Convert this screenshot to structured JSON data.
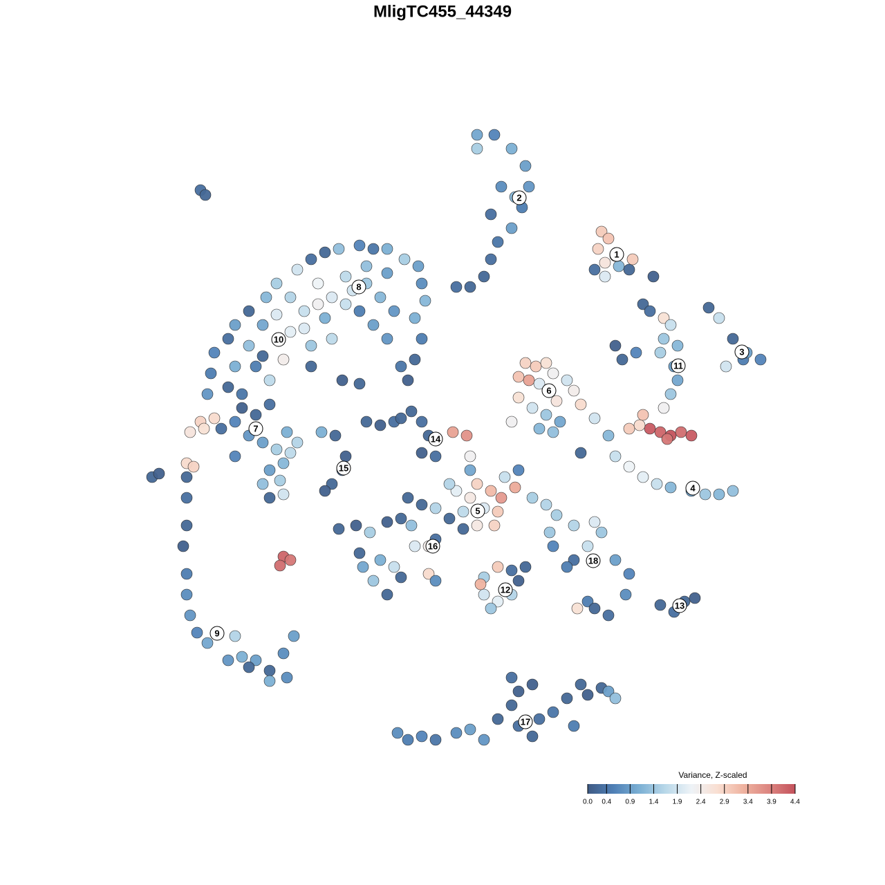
{
  "chart_data": {
    "type": "scatter",
    "title": "MligTC455_44349",
    "xlim": [
      -46,
      46
    ],
    "ylim": [
      -46,
      46
    ],
    "x": [
      23,
      24,
      22.5,
      25,
      23.5,
      25.5,
      22,
      27,
      23.5,
      27.5,
      5,
      7.5,
      10,
      12,
      12.5,
      11.5,
      10,
      8,
      7,
      6,
      4,
      2,
      8.5,
      5,
      10.5,
      7,
      38.5,
      40,
      42,
      43.5,
      46,
      41,
      44,
      29,
      30,
      32,
      33,
      32,
      34,
      31.5,
      33.5,
      25,
      26,
      28,
      34,
      33,
      32,
      22,
      24,
      25,
      27,
      29,
      31,
      33,
      36,
      38,
      40,
      42,
      20,
      30,
      31.5,
      33,
      34.5,
      36,
      32.5,
      27,
      28.5,
      29,
      12,
      13.5,
      15,
      11,
      12.5,
      14,
      16,
      18,
      16.5,
      19,
      20,
      11,
      13,
      15,
      17,
      10,
      14,
      16,
      5,
      7,
      8.5,
      4,
      6,
      8,
      3,
      2,
      9,
      10.5,
      5,
      7.5,
      3,
      1,
      4,
      11,
      13,
      15,
      1.5,
      3.5,
      4,
      -11,
      -9,
      -7,
      -4.5,
      -3,
      -2,
      -3,
      -1,
      -6,
      -10.5,
      -9,
      -7,
      -4,
      -2,
      -4.5,
      -6,
      -8,
      -3,
      -1,
      -12,
      -10,
      -11.5,
      -5,
      -1,
      1,
      -6,
      -8,
      -2,
      -1,
      6,
      8,
      10,
      6,
      8,
      10,
      7,
      12,
      11,
      5.5,
      16.5,
      19,
      22,
      23,
      21,
      19,
      18,
      25,
      27,
      26.5,
      21,
      19.5,
      24,
      22,
      15.5,
      16,
      31.5,
      33.5,
      35,
      36.5,
      -6.5,
      -5,
      -3,
      -1,
      2,
      4,
      6,
      8,
      10,
      11,
      10,
      13,
      14,
      16,
      18,
      20,
      21,
      23,
      24,
      25,
      13,
      11,
      19,
      -37,
      -37,
      -37,
      -37.5,
      -37,
      -37,
      -36.5,
      -35.5,
      -34,
      -32.5,
      -30,
      -29,
      -31,
      -27,
      -25,
      -23,
      -21.5,
      -22.5,
      -25,
      -28,
      -37,
      -36,
      -36.5,
      -35,
      -34.5,
      -33,
      -23,
      -22,
      -23.5,
      -29,
      -27,
      -25,
      -30,
      -28,
      -26,
      -24,
      -22,
      -21,
      -23,
      -25,
      -26,
      -23.5,
      -25,
      -23,
      -30,
      -32,
      -22.5,
      -17.5,
      -15.5,
      -14,
      -14.5,
      -16,
      -17,
      -35,
      -34.3,
      -42,
      -41,
      -12.5,
      -15,
      30.5,
      -33,
      -33.5,
      -34,
      -31,
      -30,
      -28,
      -25.5,
      -24,
      -21,
      -19,
      -17,
      -15,
      -12,
      -10,
      -8,
      -5.5,
      -3.5,
      -3,
      -2.5,
      -4,
      -3,
      -4,
      -5,
      -6,
      -8,
      -10,
      -12,
      -14,
      -16,
      -18,
      -20,
      -22,
      -24,
      -26,
      -22,
      -19,
      -16,
      -13,
      -11,
      -9,
      -7,
      -14,
      -18,
      -28,
      -30,
      -27,
      -25,
      -29,
      -23,
      -20,
      -17,
      -8,
      -11,
      -19,
      -14.5,
      -12,
      -26,
      -31
    ],
    "y": [
      30.5,
      29.5,
      28,
      27,
      26,
      25.5,
      25,
      25,
      24,
      26.5,
      44.5,
      44.5,
      42.5,
      40,
      37,
      34,
      31,
      29,
      26.5,
      24,
      22.5,
      22.5,
      37,
      42.5,
      35.5,
      33,
      19.5,
      18,
      15,
      12,
      12,
      11,
      13,
      20,
      19,
      18,
      17,
      15,
      14,
      13,
      11,
      14,
      12,
      13,
      9,
      7,
      5,
      3.5,
      1,
      -2,
      -3.5,
      -5,
      -6,
      -6.5,
      -7,
      -7.5,
      -7.5,
      -7,
      -1.5,
      2,
      1.5,
      1,
      1.5,
      1,
      0.5,
      2,
      2.5,
      4,
      11.5,
      11,
      11.5,
      9.5,
      9,
      8.5,
      10,
      9,
      6,
      7.5,
      5.5,
      6.5,
      5,
      4,
      3,
      3,
      2,
      1.5,
      -6,
      -7,
      -8,
      -8,
      -9.5,
      -10,
      -10,
      -7,
      -5,
      -6.5,
      -12,
      -12,
      -12.5,
      -6,
      -4,
      -4,
      -8,
      -9,
      1.5,
      1,
      -2,
      3,
      2.5,
      3,
      4.5,
      3,
      1,
      -1.5,
      -2,
      3.5,
      -13,
      -17,
      -18,
      -15,
      -15,
      -12,
      -11,
      -11.5,
      -9,
      -9.5,
      -16,
      -20,
      -18,
      -8,
      -14,
      -11,
      -19.5,
      -22,
      -19,
      -20,
      -19.5,
      -18,
      -18.5,
      -22,
      -23,
      -22,
      -24,
      -18,
      -20,
      -20.5,
      -10.5,
      -12,
      -11.5,
      -13,
      -15,
      -17,
      -18,
      -17,
      -19,
      -22,
      -23,
      -24,
      -25,
      -24,
      -13,
      -15,
      -23.5,
      -24.5,
      -23,
      -22.5,
      -42,
      -43,
      -42.5,
      -43,
      -42,
      -41.5,
      -43,
      -40,
      -38,
      -36,
      -34,
      -35,
      -40,
      -39,
      -37,
      -35,
      -36.5,
      -35.5,
      -36,
      -37,
      -42.5,
      -41,
      -41,
      -5,
      -8,
      -12,
      -15,
      -19,
      -22,
      -25,
      -27.5,
      -29,
      -27.5,
      -28,
      -31,
      -31.5,
      -31.5,
      -33,
      -30.5,
      -28,
      -34,
      -34.5,
      -32.5,
      -3,
      -3.5,
      1.5,
      3,
      2,
      3.5,
      -16.5,
      -17,
      -17.8,
      5,
      4,
      5.5,
      3,
      1,
      0,
      -1,
      -1.5,
      0,
      -3,
      -4,
      -6,
      -5.5,
      -8,
      -7.5,
      -2,
      2,
      1.5,
      1.5,
      1,
      -2,
      -4,
      -6,
      -7,
      36.5,
      35.8,
      -5,
      -4.5,
      -12,
      -12.5,
      24,
      13,
      10,
      7,
      15,
      17,
      19,
      21,
      23,
      25,
      26.5,
      27.5,
      28,
      28.5,
      28,
      28,
      26.5,
      25.5,
      23,
      20.5,
      18,
      15,
      12,
      9,
      11,
      15,
      17,
      19,
      20,
      21,
      20,
      19,
      21,
      18.5,
      17,
      16,
      14,
      15,
      22,
      23,
      21,
      19,
      24,
      23,
      14,
      11,
      11,
      9,
      7,
      12,
      16.5,
      18,
      24.5,
      25.5,
      11,
      9,
      8.5,
      12.5,
      8
    ],
    "values": [
      3.0,
      3.1,
      2.9,
      3.2,
      2.6,
      1.2,
      0.3,
      0.2,
      2.0,
      3.0,
      1.0,
      0.6,
      1.1,
      0.9,
      0.8,
      0.5,
      0.9,
      0.4,
      0.3,
      0.2,
      0.2,
      0.3,
      0.7,
      1.5,
      1.2,
      0.3,
      0.2,
      1.8,
      0.2,
      0.5,
      0.6,
      1.9,
      0.9,
      0.2,
      0.3,
      2.7,
      1.8,
      1.4,
      1.2,
      1.5,
      0.9,
      0.1,
      0.2,
      0.6,
      1.0,
      1.4,
      2.3,
      1.9,
      1.2,
      1.8,
      2.2,
      2.1,
      1.8,
      1.2,
      0.9,
      1.4,
      1.2,
      1.3,
      0.2,
      4.3,
      4.2,
      4.4,
      4.1,
      4.3,
      4.0,
      3.0,
      2.8,
      3.1,
      2.9,
      3.0,
      2.7,
      3.1,
      3.5,
      2.0,
      2.3,
      1.9,
      2.6,
      2.4,
      2.8,
      2.7,
      1.9,
      1.4,
      1.0,
      2.3,
      1.2,
      1.3,
      2.9,
      3.2,
      3.6,
      2.5,
      2.0,
      3.0,
      1.7,
      2.1,
      1.8,
      3.4,
      2.5,
      2.9,
      0.2,
      1.6,
      1.0,
      0.6,
      1.5,
      1.6,
      3.5,
      3.7,
      2.3,
      0.2,
      0.1,
      0.3,
      0.2,
      0.3,
      0.2,
      0.1,
      0.3,
      0.2,
      1.5,
      1.1,
      1.8,
      2.0,
      2.4,
      1.3,
      0.2,
      0.1,
      0.2,
      1.6,
      0.2,
      1.4,
      1.0,
      0.2,
      0.3,
      0.2,
      0.2,
      0.2,
      2.8,
      0.7,
      1.5,
      3.0,
      0.3,
      1.9,
      2.1,
      1.6,
      1.4,
      0.2,
      0.1,
      3.3,
      1.5,
      1.6,
      2.0,
      1.4,
      1.8,
      0.3,
      0.5,
      0.9,
      0.6,
      0.7,
      0.5,
      2.7,
      0.3,
      0.2,
      1.4,
      0.6,
      0.2,
      0.3,
      0.2,
      0.1,
      0.7,
      0.5,
      0.6,
      0.4,
      0.7,
      0.9,
      0.8,
      0.2,
      0.2,
      0.1,
      0.3,
      0.1,
      0.3,
      0.4,
      0.2,
      0.2,
      0.1,
      0.2,
      0.9,
      1.3,
      0.2,
      0.3,
      0.5,
      0.2,
      0.3,
      0.2,
      0.1,
      0.5,
      0.7,
      0.8,
      0.6,
      1.0,
      1.3,
      1.6,
      1.1,
      0.8,
      0.9,
      0.2,
      0.7,
      0.9,
      0.7,
      1.1,
      0.2,
      2.8,
      2.9,
      2.6,
      2.9,
      2.7,
      2.8,
      4.2,
      4.0,
      4.1,
      0.1,
      0.2,
      0.3,
      0.6,
      0.8,
      0.9,
      1.5,
      1.7,
      1.6,
      1.2,
      0.9,
      1.3,
      1.5,
      0.2,
      1.9,
      0.6,
      0.3,
      1.1,
      1.1,
      0.2,
      0.1,
      0.3,
      0.2,
      0.1,
      0.3,
      0.2,
      0.2,
      0.1,
      0.1,
      0.2,
      0.1,
      0.6,
      0.5,
      0.8,
      0.3,
      0.9,
      0.2,
      1.2,
      1.5,
      1.9,
      0.3,
      0.2,
      1.3,
      0.6,
      0.4,
      1.1,
      1.5,
      0.9,
      0.7,
      1.2,
      1.1,
      0.5,
      0.2,
      0.1,
      0.4,
      0.8,
      0.9,
      0.5,
      1.8,
      2.0,
      2.3,
      1.8,
      1.6,
      2.0,
      1.0,
      2.1,
      1.4,
      1.7,
      1.9,
      1.4,
      1.2,
      0.8,
      1.7,
      2.2,
      1.3,
      1.1,
      0.5,
      1.7,
      0.4,
      2.4,
      2.0,
      1.1,
      0.9,
      1.3,
      0.2,
      0.1,
      0.2,
      0.2,
      0.2
    ],
    "annotations": [
      {
        "label": "1",
        "x": 25.2,
        "y": 27.2
      },
      {
        "label": "2",
        "x": 11.1,
        "y": 35.4
      },
      {
        "label": "3",
        "x": 43.3,
        "y": 13.1
      },
      {
        "label": "4",
        "x": 36.2,
        "y": -6.6
      },
      {
        "label": "5",
        "x": 5.1,
        "y": -9.9
      },
      {
        "label": "6",
        "x": 15.4,
        "y": 7.5
      },
      {
        "label": "7",
        "x": -27,
        "y": 2
      },
      {
        "label": "8",
        "x": -12.1,
        "y": 22.5
      },
      {
        "label": "9",
        "x": -32.6,
        "y": -27.6
      },
      {
        "label": "10",
        "x": -23.7,
        "y": 14.9
      },
      {
        "label": "11",
        "x": 34.1,
        "y": 11.1
      },
      {
        "label": "12",
        "x": 9.1,
        "y": -21.3
      },
      {
        "label": "13",
        "x": 34.3,
        "y": -23.6
      },
      {
        "label": "14",
        "x": -1,
        "y": 0.5
      },
      {
        "label": "15",
        "x": -14.3,
        "y": -3.7
      },
      {
        "label": "16",
        "x": -1.4,
        "y": -15
      },
      {
        "label": "17",
        "x": 12,
        "y": -40.4
      },
      {
        "label": "18",
        "x": 21.8,
        "y": -17.1
      }
    ],
    "colorbar": {
      "title": "Variance, Z-scaled",
      "clim": [
        0,
        4.4
      ],
      "ticks": [
        {
          "value": 0,
          "label": "0.0"
        },
        0.4,
        0.9,
        1.4,
        1.9,
        2.4,
        2.9,
        3.4,
        3.9,
        4.4
      ],
      "colors": [
        "#3f5a84",
        "#4f80b6",
        "#7cb0d4",
        "#b9d8e9",
        "#eef3f7",
        "#f9dfd2",
        "#efb3a0",
        "#dc8580",
        "#c4525c"
      ]
    }
  }
}
